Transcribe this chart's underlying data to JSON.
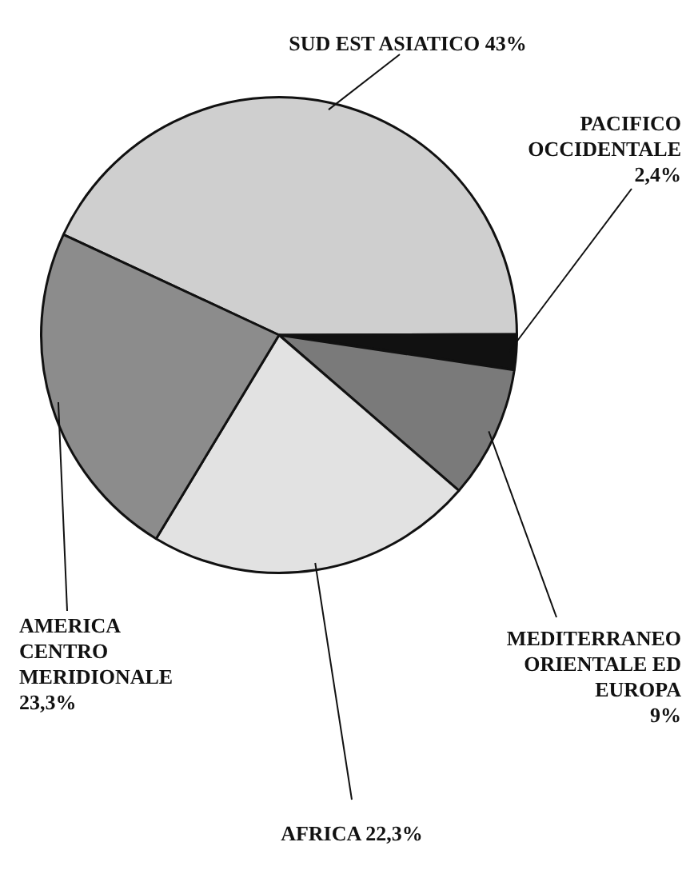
{
  "chart_data": {
    "type": "pie",
    "categories": [
      "SUD EST ASIATICO",
      "PACIFICO OCCIDENTALE",
      "MEDITERRANEO ORIENTALE ED EUROPA",
      "AFRICA",
      "AMERICA CENTRO MERIDIONALE"
    ],
    "values": [
      43,
      2.4,
      9,
      22.3,
      23.3
    ],
    "value_labels": [
      "43%",
      "2,4%",
      "9%",
      "22,3%",
      "23,3%"
    ],
    "colors": [
      "#cfcfcf",
      "#111111",
      "#7a7a7a",
      "#e2e2e2",
      "#8c8c8c"
    ],
    "legend": false
  }
}
